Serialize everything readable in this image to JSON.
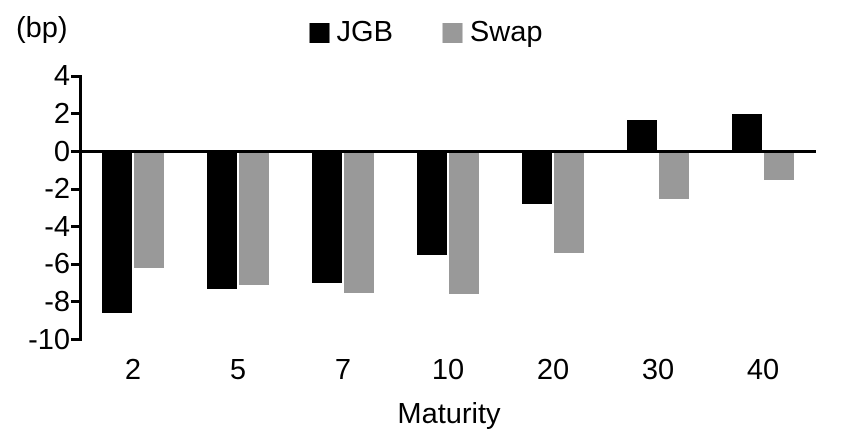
{
  "chart_data": {
    "type": "bar",
    "unit_label": "(bp)",
    "xlabel": "Maturity",
    "ylabel": "",
    "categories": [
      "2",
      "5",
      "7",
      "10",
      "20",
      "30",
      "40"
    ],
    "series": [
      {
        "name": "JGB",
        "color": "#000000",
        "values": [
          -8.6,
          -7.3,
          -7.0,
          -5.5,
          -2.8,
          1.7,
          2.0
        ]
      },
      {
        "name": "Swap",
        "color": "#999999",
        "values": [
          -6.2,
          -7.1,
          -7.5,
          -7.6,
          -5.4,
          -2.5,
          -1.5
        ]
      }
    ],
    "ylim": [
      -10,
      4
    ],
    "yticks": [
      4,
      2,
      0,
      -2,
      -4,
      -6,
      -8,
      -10
    ],
    "grid": false,
    "legend_position": "top-center",
    "background_color": "#ffffff",
    "axis_color": "#000000"
  }
}
